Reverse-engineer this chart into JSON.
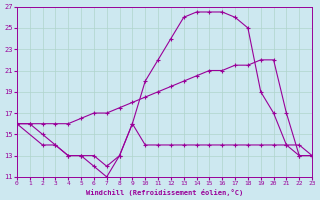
{
  "xlabel": "Windchill (Refroidissement éolien,°C)",
  "bg_color": "#cde8f0",
  "grid_color": "#b0d4cc",
  "line_color": "#990099",
  "xmin": 0,
  "xmax": 23,
  "ymin": 11,
  "ymax": 27,
  "yticks": [
    11,
    13,
    15,
    17,
    19,
    21,
    23,
    25,
    27
  ],
  "xticks": [
    0,
    1,
    2,
    3,
    4,
    5,
    6,
    7,
    8,
    9,
    10,
    11,
    12,
    13,
    14,
    15,
    16,
    17,
    18,
    19,
    20,
    21,
    22,
    23
  ],
  "series": [
    {
      "x": [
        0,
        1,
        2,
        3,
        4,
        5,
        6,
        7,
        8,
        9,
        10,
        11,
        12,
        13,
        14,
        15,
        16,
        17,
        18,
        19,
        20,
        21,
        22,
        23
      ],
      "y": [
        16,
        16,
        15,
        14,
        13,
        13,
        12,
        11,
        13,
        16,
        20,
        22,
        24,
        26,
        26.5,
        26.5,
        26.5,
        26,
        25,
        19,
        17,
        14,
        13,
        13
      ]
    },
    {
      "x": [
        0,
        1,
        2,
        3,
        4,
        5,
        6,
        7,
        8,
        9,
        10,
        11,
        12,
        13,
        14,
        15,
        16,
        17,
        18,
        19,
        20,
        21,
        22,
        23
      ],
      "y": [
        16,
        16,
        16,
        16,
        16,
        16.5,
        17,
        17,
        17.5,
        18,
        18.5,
        19,
        19.5,
        20,
        20.5,
        21,
        21,
        21.5,
        21.5,
        22,
        22,
        17,
        13,
        13
      ]
    },
    {
      "x": [
        0,
        2,
        3,
        4,
        5,
        6,
        7,
        8,
        9,
        10,
        11,
        12,
        13,
        14,
        15,
        16,
        17,
        18,
        19,
        20,
        21,
        22,
        23
      ],
      "y": [
        16,
        14,
        14,
        13,
        13,
        13,
        12,
        13,
        16,
        14,
        14,
        14,
        14,
        14,
        14,
        14,
        14,
        14,
        14,
        14,
        14,
        14,
        13
      ]
    }
  ]
}
